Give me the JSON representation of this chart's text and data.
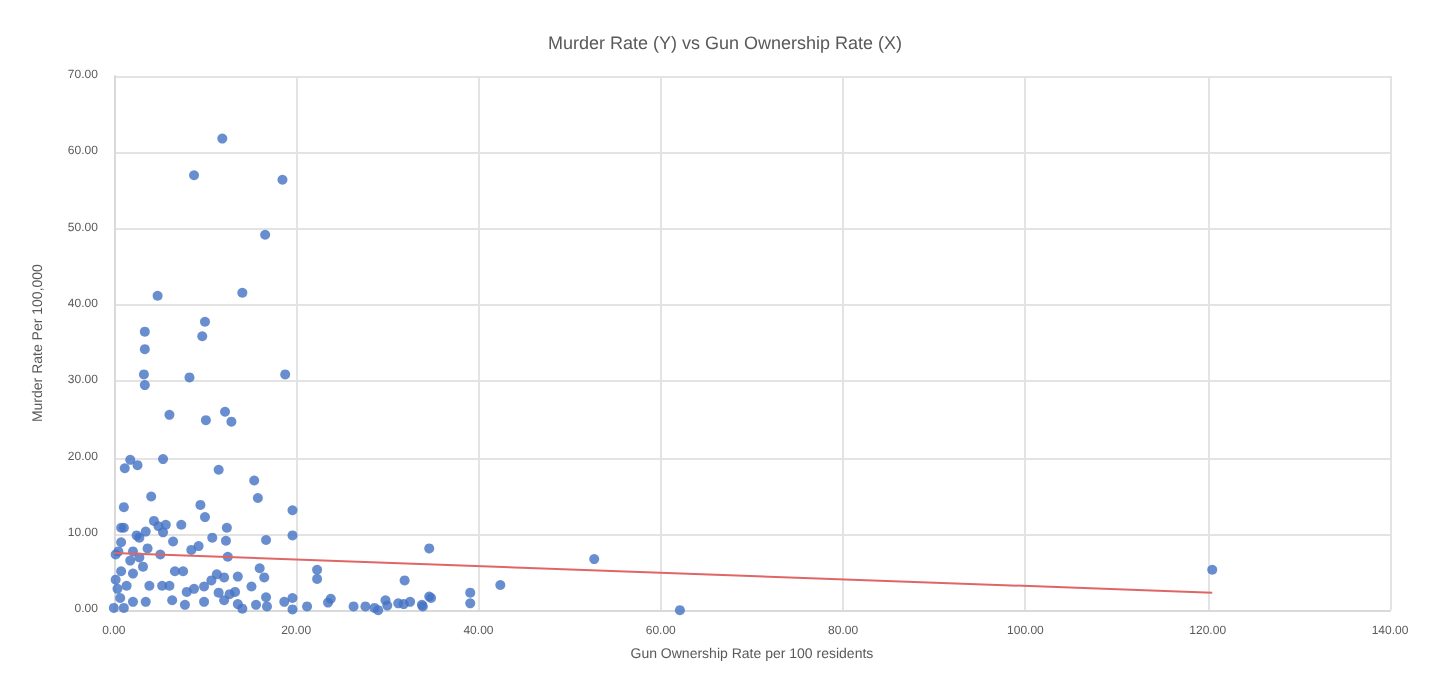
{
  "chart_data": {
    "type": "scatter",
    "title": "Murder Rate (Y) vs Gun Ownership Rate (X)",
    "xlabel": "Gun Ownership Rate per 100 residents",
    "ylabel": "Murder Rate Per 100,000",
    "series": [
      {
        "color": "#4472c4",
        "marker": "circle",
        "x": [
          3.4,
          3.4,
          3.3,
          3.4,
          10.0,
          9.7,
          8.3,
          18.8,
          6.1,
          10.1,
          12.2,
          12.9,
          1.8,
          1.2,
          2.6,
          5.4,
          11.5,
          15.4,
          15.8,
          1.1,
          4.1,
          19.6,
          9.5,
          10.0,
          0.8,
          1.1,
          3.5,
          4.4,
          4.9,
          5.7,
          7.4,
          12.4,
          10.8,
          12.3,
          2.8,
          2.5,
          5.4,
          6.5,
          16.7,
          19.6,
          0.8,
          0.5,
          3.7,
          5.1,
          8.5,
          9.3,
          12.5,
          0.2,
          2.1,
          1.8,
          2.8,
          3.2,
          0.8,
          2.1,
          6.7,
          7.6,
          11.3,
          12.1,
          13.6,
          16.0,
          16.5,
          22.3,
          22.3,
          34.6,
          31.9,
          0.2,
          0.4,
          1.4,
          3.9,
          5.3,
          6.1,
          8.0,
          8.8,
          9.9,
          10.7,
          11.5,
          12.7,
          15.1,
          13.3,
          0.7,
          2.1,
          3.5,
          6.4,
          7.8,
          9.9,
          12.1,
          13.6,
          14.1,
          15.6,
          16.7,
          16.8,
          18.7,
          19.6,
          19.6,
          21.2,
          23.5,
          23.8,
          26.3,
          27.6,
          28.6,
          29.0,
          29.8,
          30.0,
          31.2,
          31.8,
          32.5,
          33.9,
          34.8,
          39.1,
          39.1,
          0.0,
          1.1,
          11.9,
          8.8,
          18.5,
          16.6,
          4.8,
          14.1,
          34.6,
          33.8,
          42.4,
          52.7,
          62.1,
          120.5
        ],
        "values": [
          36.5,
          34.2,
          30.9,
          29.5,
          37.8,
          35.9,
          30.5,
          30.9,
          25.6,
          24.9,
          26.0,
          24.7,
          19.7,
          18.6,
          19.0,
          19.8,
          18.4,
          17.0,
          14.7,
          13.5,
          14.9,
          13.1,
          13.8,
          12.2,
          10.8,
          10.8,
          10.3,
          11.7,
          11.0,
          11.2,
          11.2,
          10.8,
          9.5,
          9.1,
          9.5,
          9.8,
          10.2,
          9.0,
          9.2,
          9.8,
          8.9,
          7.7,
          8.1,
          7.3,
          7.9,
          8.4,
          7.0,
          7.3,
          7.7,
          6.5,
          6.9,
          5.7,
          5.1,
          4.8,
          5.1,
          5.1,
          4.7,
          4.3,
          4.4,
          5.5,
          4.3,
          5.3,
          4.1,
          8.1,
          3.9,
          4.0,
          2.8,
          3.2,
          3.2,
          3.2,
          3.2,
          2.4,
          2.8,
          3.1,
          3.9,
          2.3,
          2.1,
          3.1,
          2.4,
          1.6,
          1.1,
          1.1,
          1.3,
          0.7,
          1.1,
          1.3,
          0.8,
          0.2,
          0.7,
          1.7,
          0.5,
          1.1,
          1.6,
          0.1,
          0.5,
          1.0,
          1.5,
          0.5,
          0.5,
          0.3,
          0.0,
          1.3,
          0.6,
          0.9,
          0.8,
          1.1,
          0.5,
          1.6,
          2.3,
          0.9,
          0.3,
          0.3,
          61.8,
          57.0,
          56.4,
          49.2,
          41.2,
          41.6,
          1.8,
          0.7,
          3.3,
          6.7,
          0.0,
          5.3
        ]
      },
      {
        "type": "line",
        "marker": "none",
        "color": "#e06666",
        "x": [
          0,
          120.5
        ],
        "values": [
          7.5,
          2.3
        ]
      }
    ],
    "xlim": [
      0,
      140
    ],
    "xticks": [
      {
        "value": 0,
        "label": "0.00"
      },
      {
        "value": 20,
        "label": "20.00"
      },
      {
        "value": 40,
        "label": "40.00"
      },
      {
        "value": 60,
        "label": "60.00"
      },
      {
        "value": 80,
        "label": "80.00"
      },
      {
        "value": 100,
        "label": "100.00"
      },
      {
        "value": 120,
        "label": "120.00"
      },
      {
        "value": 140,
        "label": "140.00"
      }
    ],
    "ylim": [
      0,
      70
    ],
    "yticks": [
      {
        "value": 0,
        "label": "0.00"
      },
      {
        "value": 10,
        "label": "10.00"
      },
      {
        "value": 20,
        "label": "20.00"
      },
      {
        "value": 30,
        "label": "30.00"
      },
      {
        "value": 40,
        "label": "40.00"
      },
      {
        "value": 50,
        "label": "50.00"
      },
      {
        "value": 60,
        "label": "60.00"
      },
      {
        "value": 70,
        "label": "70.00"
      }
    ],
    "grid": true
  }
}
